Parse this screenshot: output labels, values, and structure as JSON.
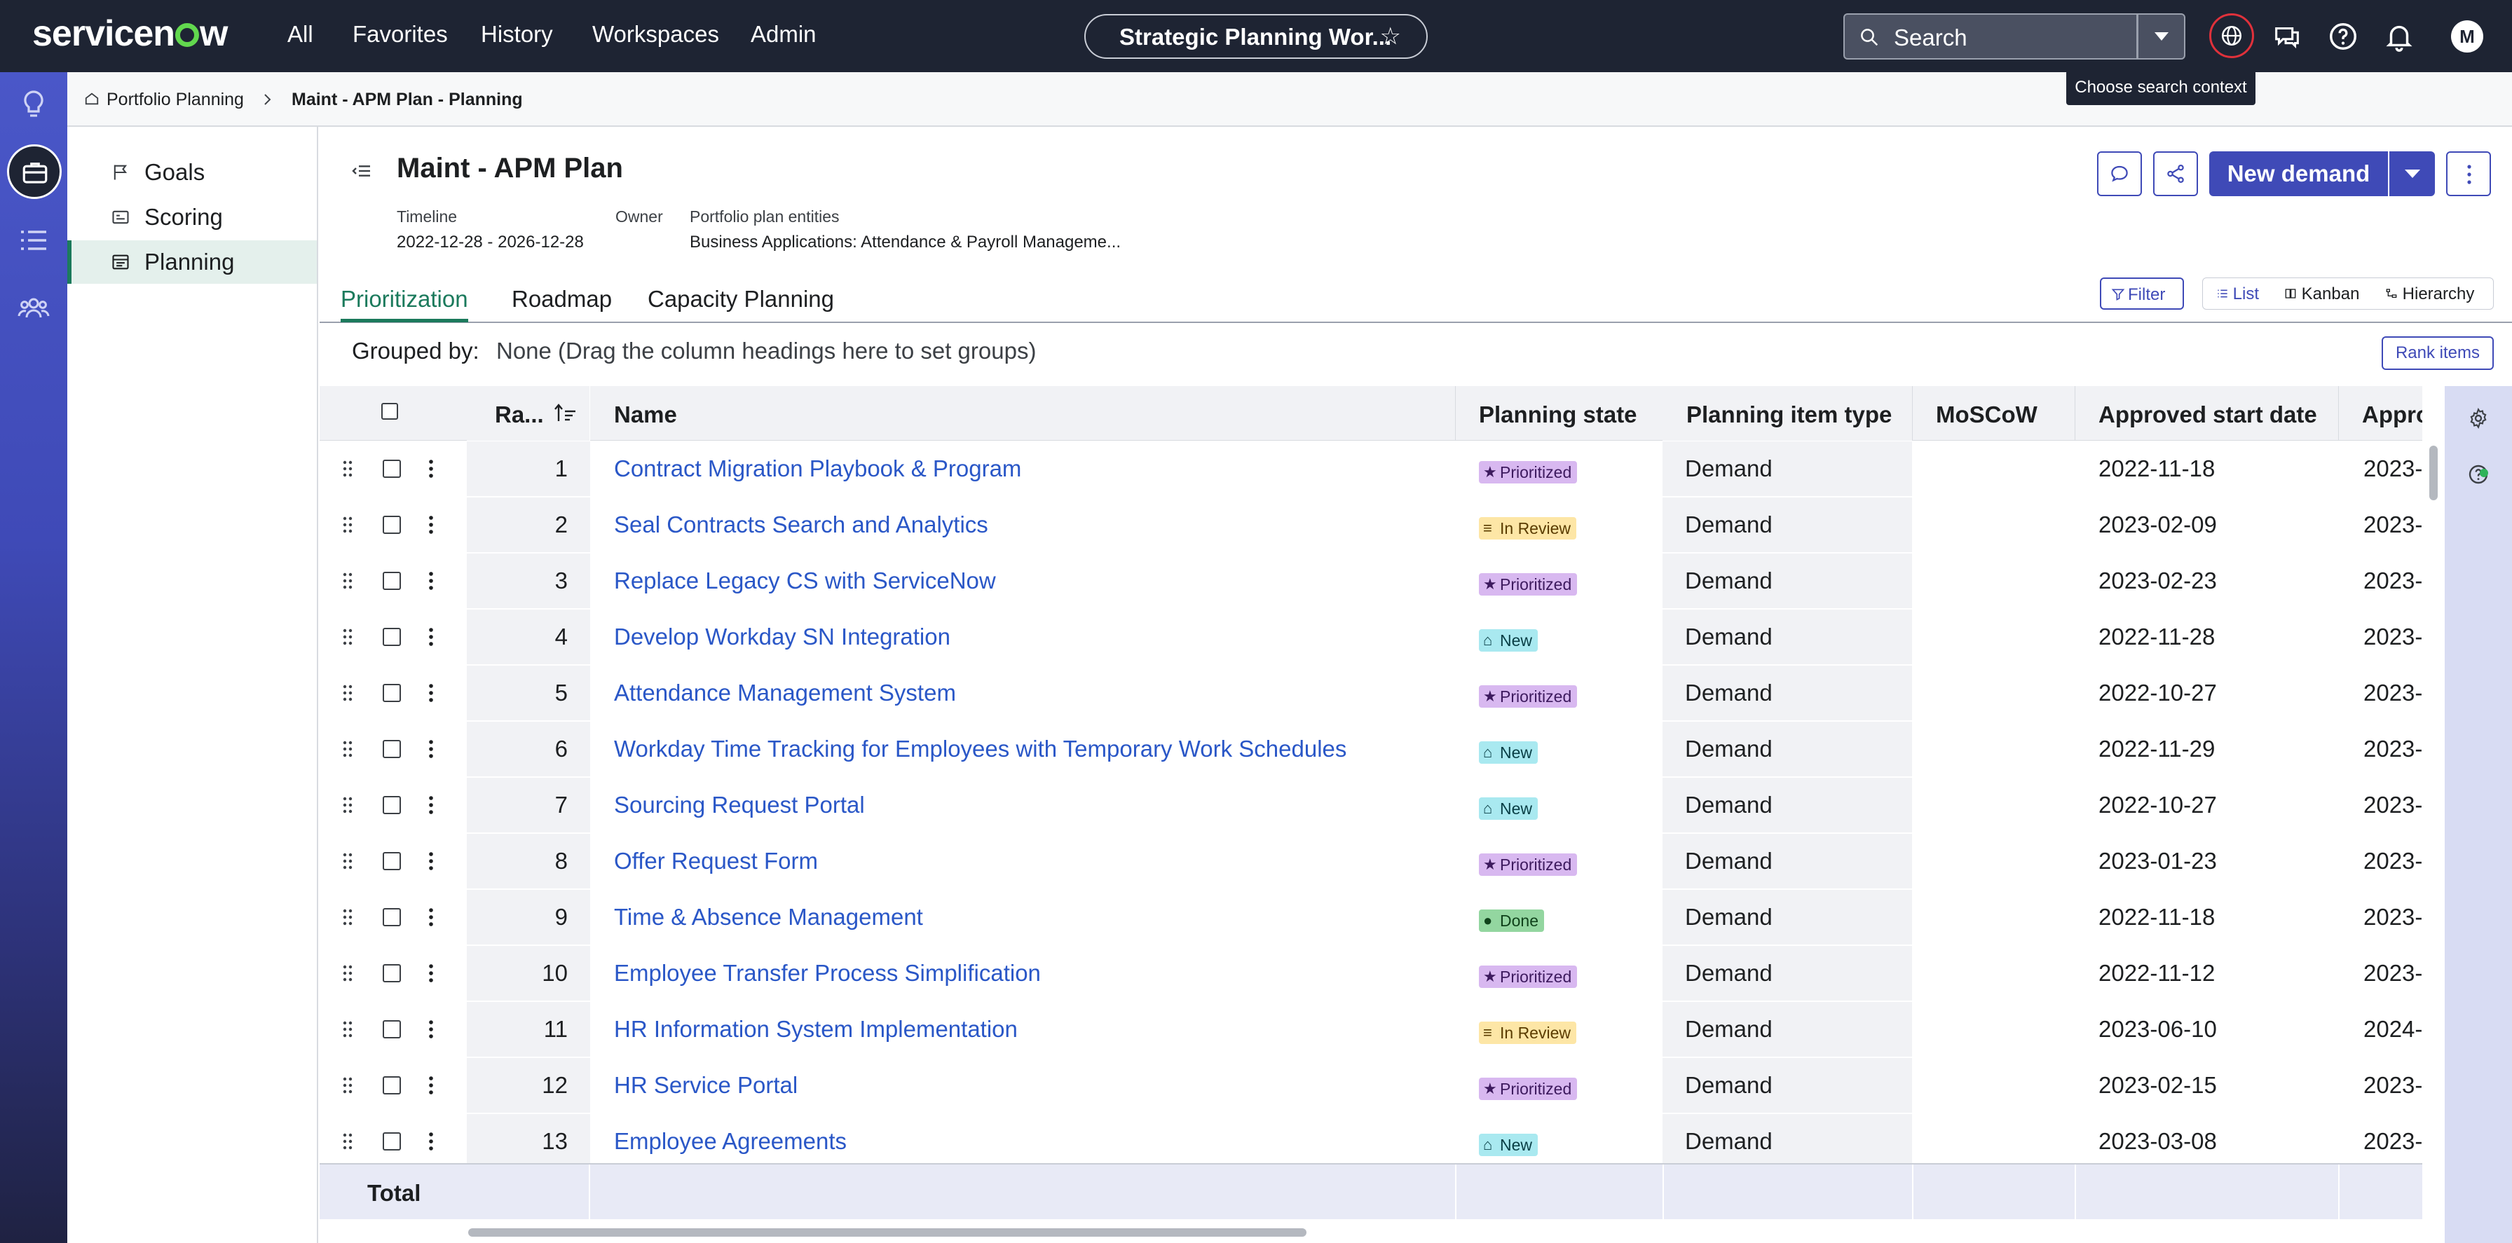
{
  "topnav": {
    "logo_text": "servicenow",
    "items": [
      "All",
      "Favorites",
      "History",
      "Workspaces",
      "Admin"
    ],
    "workspace_context": "Strategic Planning Wor...",
    "search_placeholder": "Search",
    "tooltip": "Choose search context",
    "avatar_initial": "M"
  },
  "breadcrumb": {
    "parent": "Portfolio Planning",
    "current": "Maint - APM Plan - Planning"
  },
  "sidebar": {
    "items": [
      {
        "label": "Goals",
        "icon": "flag-icon"
      },
      {
        "label": "Scoring",
        "icon": "scoring-icon"
      },
      {
        "label": "Planning",
        "icon": "planning-icon",
        "active": true
      }
    ]
  },
  "header": {
    "title": "Maint - APM Plan",
    "timeline_label": "Timeline",
    "timeline_value": "2022-12-28 - 2026-12-28",
    "owner_label": "Owner",
    "entities_label": "Portfolio plan entities",
    "entities_value": "Business Applications: Attendance & Payroll Manageme...",
    "new_demand_label": "New demand"
  },
  "tabs": [
    {
      "label": "Prioritization",
      "active": true
    },
    {
      "label": "Roadmap"
    },
    {
      "label": "Capacity Planning"
    }
  ],
  "toolbar": {
    "filter_label": "Filter",
    "view_list": "List",
    "view_kanban": "Kanban",
    "view_hierarchy": "Hierarchy",
    "grouped_label": "Grouped by:",
    "grouped_value": "None (Drag the column headings here to set groups)",
    "rank_items_label": "Rank items"
  },
  "table": {
    "columns": [
      "Ra...",
      "Name",
      "Planning state",
      "Planning item type",
      "MoSCoW",
      "Approved start date",
      "Appro"
    ],
    "rows": [
      {
        "rank": "1",
        "name": "Contract Migration Playbook & Program",
        "state": "Prioritized",
        "type": "Demand",
        "start": "2022-11-18",
        "end": "2023-"
      },
      {
        "rank": "2",
        "name": "Seal Contracts Search and Analytics",
        "state": "In Review",
        "type": "Demand",
        "start": "2023-02-09",
        "end": "2023-"
      },
      {
        "rank": "3",
        "name": "Replace Legacy CS with ServiceNow",
        "state": "Prioritized",
        "type": "Demand",
        "start": "2023-02-23",
        "end": "2023-"
      },
      {
        "rank": "4",
        "name": "Develop Workday SN Integration",
        "state": "New",
        "type": "Demand",
        "start": "2022-11-28",
        "end": "2023-"
      },
      {
        "rank": "5",
        "name": "Attendance Management System",
        "state": "Prioritized",
        "type": "Demand",
        "start": "2022-10-27",
        "end": "2023-"
      },
      {
        "rank": "6",
        "name": "Workday Time Tracking for Employees with Temporary Work Schedules",
        "state": "New",
        "type": "Demand",
        "start": "2022-11-29",
        "end": "2023-"
      },
      {
        "rank": "7",
        "name": "Sourcing Request Portal",
        "state": "New",
        "type": "Demand",
        "start": "2022-10-27",
        "end": "2023-"
      },
      {
        "rank": "8",
        "name": "Offer Request Form",
        "state": "Prioritized",
        "type": "Demand",
        "start": "2023-01-23",
        "end": "2023-"
      },
      {
        "rank": "9",
        "name": "Time & Absence Management",
        "state": "Done",
        "type": "Demand",
        "start": "2022-11-18",
        "end": "2023-"
      },
      {
        "rank": "10",
        "name": "Employee Transfer Process Simplification",
        "state": "Prioritized",
        "type": "Demand",
        "start": "2022-11-12",
        "end": "2023-"
      },
      {
        "rank": "11",
        "name": "HR Information System Implementation",
        "state": "In Review",
        "type": "Demand",
        "start": "2023-06-10",
        "end": "2024-"
      },
      {
        "rank": "12",
        "name": "HR Service Portal",
        "state": "Prioritized",
        "type": "Demand",
        "start": "2023-02-15",
        "end": "2023-"
      },
      {
        "rank": "13",
        "name": "Employee Agreements",
        "state": "New",
        "type": "Demand",
        "start": "2023-03-08",
        "end": "2023-"
      }
    ],
    "total_label": "Total"
  },
  "colors": {
    "nav_bg": "#1e2433",
    "accent": "#3f4ab7",
    "active_green": "#1b7a5c",
    "link": "#2a57c7"
  }
}
